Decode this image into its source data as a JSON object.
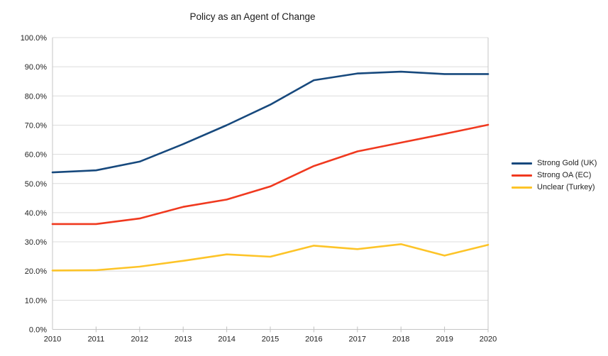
{
  "chart_data": {
    "type": "line",
    "title": "Policy as an Agent of Change",
    "x": [
      "2010",
      "2011",
      "2012",
      "2013",
      "2014",
      "2015",
      "2016",
      "2017",
      "2018",
      "2019",
      "2020"
    ],
    "xlabel": "",
    "ylabel": "",
    "y_axis": {
      "min": 0,
      "max": 100,
      "step": 10,
      "tick_format": "percent_one_decimal"
    },
    "grid": "horizontal",
    "legend_position": "right",
    "series": [
      {
        "name": "Strong Gold (UK)",
        "color": "#17497d",
        "values": [
          53.8,
          54.5,
          57.5,
          63.5,
          70.0,
          77.0,
          85.4,
          87.7,
          88.3,
          87.5,
          87.5
        ]
      },
      {
        "name": "Strong OA (EC)",
        "color": "#f0391f",
        "values": [
          36.1,
          36.1,
          38.0,
          42.0,
          44.5,
          49.0,
          56.0,
          61.0,
          64.0,
          67.0,
          70.1
        ]
      },
      {
        "name": "Unclear (Turkey)",
        "color": "#fdc428",
        "values": [
          20.2,
          20.3,
          21.5,
          23.5,
          25.7,
          24.9,
          28.7,
          27.5,
          29.2,
          25.3,
          29.0
        ]
      }
    ]
  },
  "style_colors": {
    "grid": "#dcdcdc",
    "axis": "#c6c6c6",
    "tick": "#c0c0c0",
    "label_text": "#1f1f1f",
    "background": "#ffffff"
  }
}
